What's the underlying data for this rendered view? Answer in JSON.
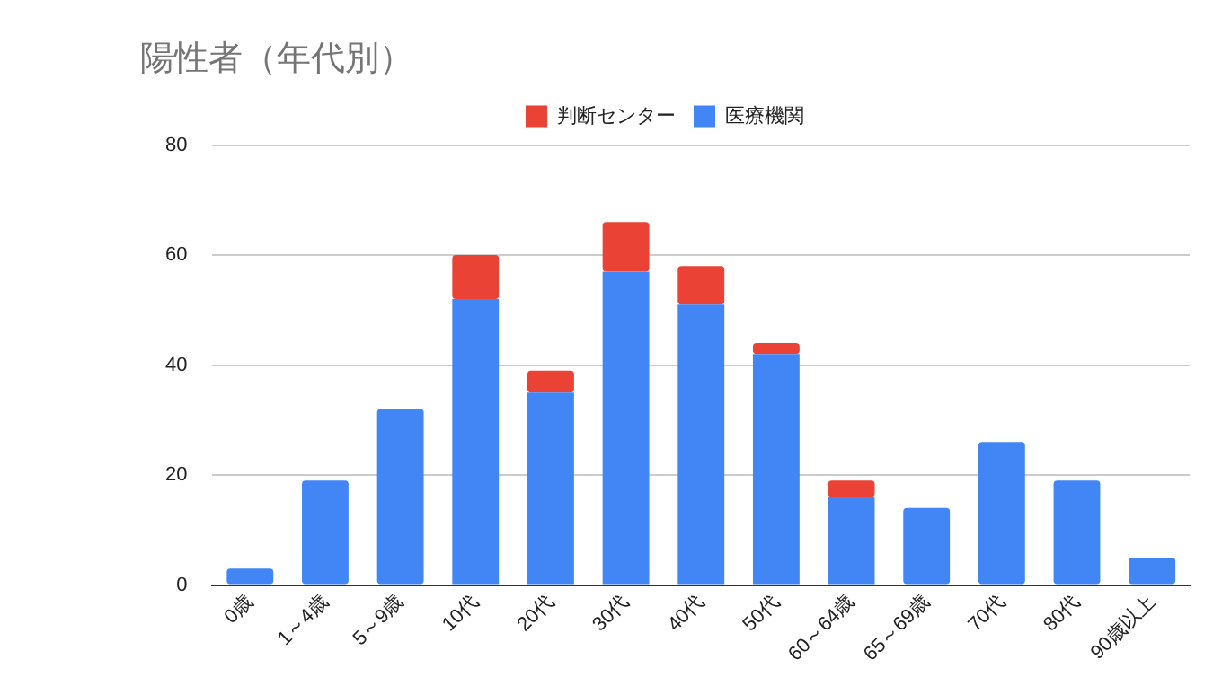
{
  "chart_data": {
    "type": "bar",
    "title": "陽性者（年代別）",
    "categories": [
      "0歳",
      "1～4歳",
      "5～9歳",
      "10代",
      "20代",
      "30代",
      "40代",
      "50代",
      "60～64歳",
      "65～69歳",
      "70代",
      "80代",
      "90歳以上"
    ],
    "stacked": true,
    "series": [
      {
        "name": "医療機関",
        "color": "#4285f4",
        "values": [
          3,
          19,
          32,
          52,
          35,
          57,
          51,
          42,
          16,
          14,
          26,
          19,
          5
        ]
      },
      {
        "name": "判断センター",
        "color": "#ea4335",
        "values": [
          0,
          0,
          0,
          8,
          4,
          9,
          7,
          2,
          3,
          0,
          0,
          0,
          0
        ]
      }
    ],
    "ylim": [
      0,
      80
    ],
    "yticks": [
      0,
      20,
      40,
      60,
      80
    ],
    "grid": "y",
    "legend": "top"
  }
}
